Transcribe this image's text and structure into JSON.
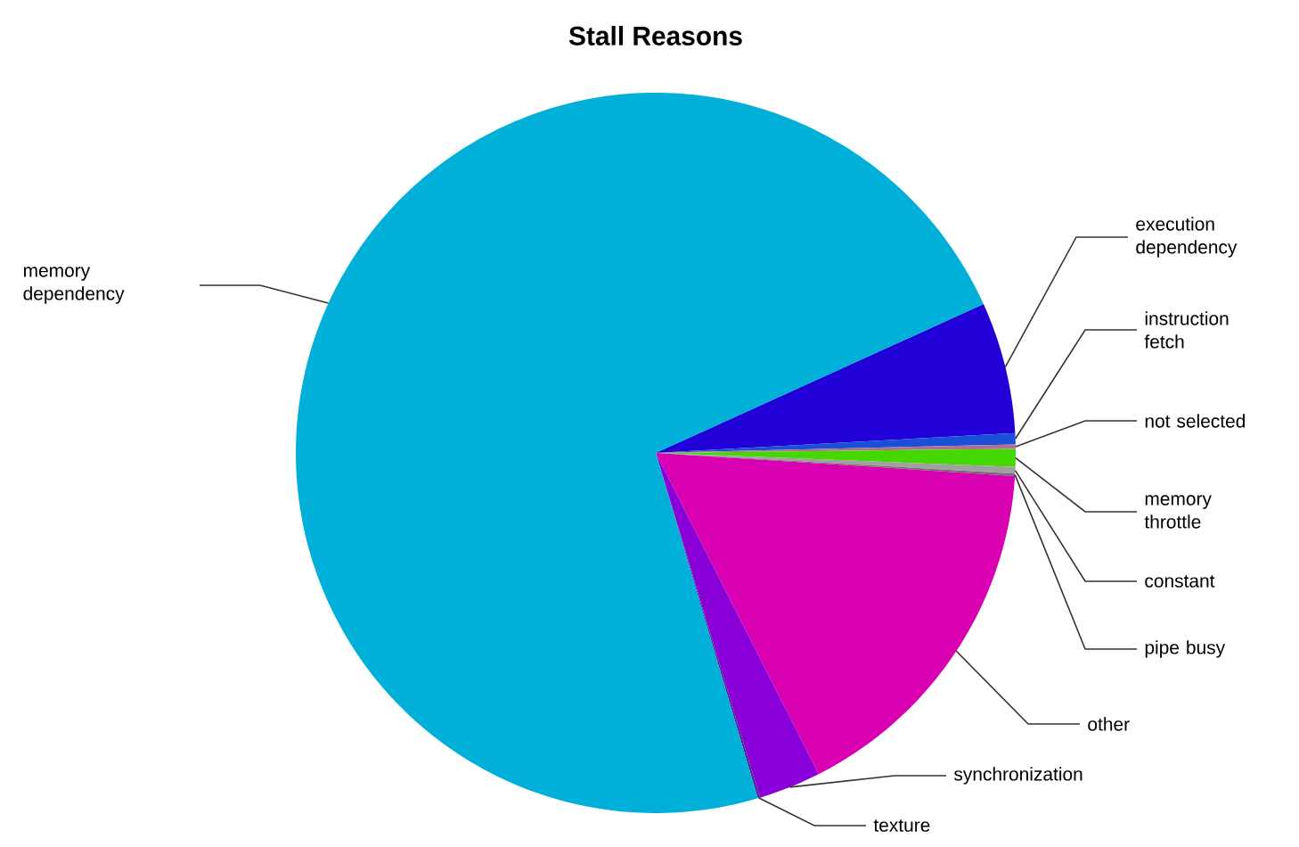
{
  "chart_data": {
    "type": "pie",
    "title": "Stall Reasons",
    "categories": [
      "execution dependency",
      "instruction fetch",
      "not selected",
      "memory throttle",
      "constant",
      "pipe busy",
      "other",
      "synchronization",
      "texture",
      "memory dependency"
    ],
    "values": [
      5.9,
      0.5,
      0.2,
      0.8,
      0.3,
      0.1,
      16.5,
      2.8,
      0.1,
      72.8
    ],
    "colors": [
      "#2200d8",
      "#1a50d8",
      "#b07090",
      "#44d800",
      "#a0a0a0",
      "#707070",
      "#d800b0",
      "#8a00d8",
      "#502090",
      "#00b0d8"
    ]
  }
}
